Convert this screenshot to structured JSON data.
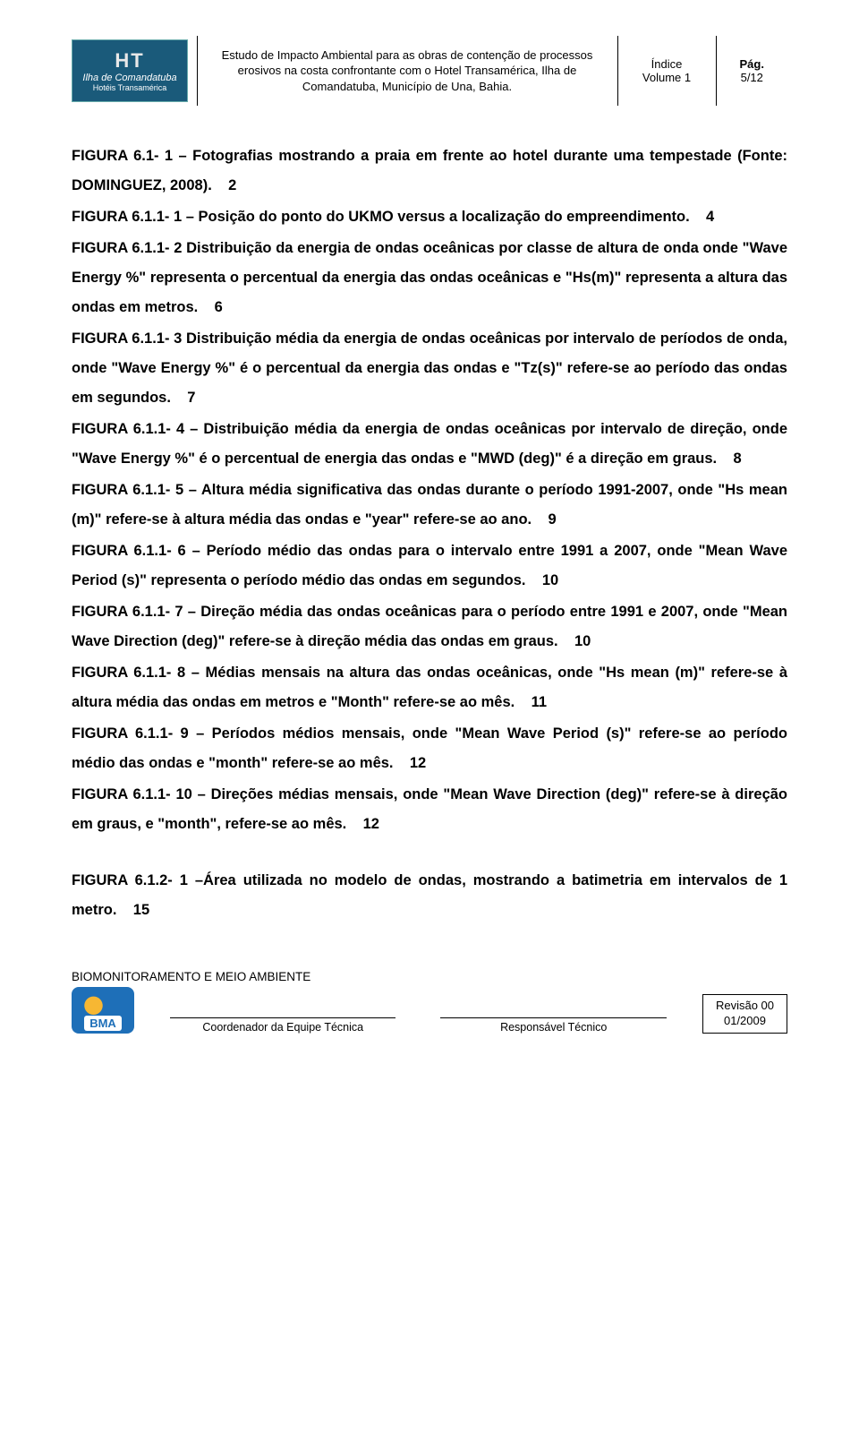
{
  "header": {
    "logo": {
      "line1": "HT",
      "line2": "Ilha de Comandatuba",
      "line3": "Hotéis Transamérica"
    },
    "description": "Estudo de Impacto Ambiental para as obras de contenção de processos erosivos na costa confrontante com o Hotel Transamérica, Ilha de Comandatuba, Município de Una, Bahia.",
    "index_label": "Índice",
    "volume": "Volume 1",
    "page_label": "Pág.",
    "page_num": "5/12"
  },
  "entries": [
    {
      "label": "FIGURA 6.1-",
      "num": "1",
      "text": " – Fotografias mostrando a praia em frente ao hotel durante uma tempestade (Fonte: DOMINGUEZ, 2008).",
      "page": "2"
    },
    {
      "label": "FIGURA 6.1.1-",
      "num": "1",
      "text": " – Posição do ponto do UKMO versus a localização do empreendimento.",
      "page": "4"
    },
    {
      "label": "FIGURA 6.1.1-",
      "num": "2",
      "text": " Distribuição da energia de ondas oceânicas por classe de altura de onda onde \"Wave Energy %\" representa o percentual da energia das ondas oceânicas e \"Hs(m)\" representa a altura das ondas em metros.",
      "page": "6"
    },
    {
      "label": "FIGURA 6.1.1-",
      "num": "3",
      "text": " Distribuição média da energia de ondas oceânicas por intervalo de períodos de onda, onde \"Wave Energy %\" é o percentual da energia das ondas e \"Tz(s)\" refere-se ao período das ondas em segundos.",
      "page": "7"
    },
    {
      "label": "FIGURA 6.1.1-",
      "num": "4",
      "text": " – Distribuição média da energia de ondas oceânicas por intervalo de direção, onde \"Wave Energy %\" é o percentual de energia das ondas e \"MWD (deg)\" é a direção em graus.",
      "page": "8"
    },
    {
      "label": "FIGURA 6.1.1-",
      "num": "5",
      "text": " – Altura média significativa das ondas durante o período 1991-2007, onde \"Hs mean (m)\" refere-se à altura média das ondas e \"year\" refere-se ao ano.",
      "page": "9"
    },
    {
      "label": "FIGURA 6.1.1-",
      "num": "6",
      "text": " – Período médio das ondas para o intervalo entre 1991 a 2007, onde \"Mean Wave Period (s)\" representa o período médio das ondas em segundos.",
      "page": "10"
    },
    {
      "label": "FIGURA 6.1.1-",
      "num": "7",
      "text": " – Direção média das ondas oceânicas para o período entre 1991 e 2007, onde \"Mean Wave Direction (deg)\" refere-se à direção média das ondas em graus.",
      "page": "10"
    },
    {
      "label": "FIGURA 6.1.1-",
      "num": "8",
      "text": " – Médias mensais na altura das ondas oceânicas, onde \"Hs mean (m)\" refere-se à altura média das ondas em metros e \"Month\" refere-se ao mês.",
      "page": "11"
    },
    {
      "label": "FIGURA 6.1.1-",
      "num": "9",
      "text": " – Períodos médios mensais, onde \"Mean Wave Period (s)\" refere-se ao período médio das ondas e \"month\" refere-se ao mês.",
      "page": "12"
    },
    {
      "label": "FIGURA 6.1.1-",
      "num": "10",
      "text": " – Direções médias mensais, onde \"Mean Wave Direction (deg)\" refere-se à direção em graus, e \"month\", refere-se ao mês.",
      "page": "12"
    }
  ],
  "entries2": [
    {
      "label": "FIGURA 6.1.2-",
      "num": "1",
      "text": " –Área utilizada no modelo de ondas, mostrando a batimetria em intervalos de 1 metro.",
      "page": "15"
    }
  ],
  "footer": {
    "org": "BIOMONITORAMENTO E MEIO AMBIENTE",
    "logo_text": "BMA",
    "sig1": "Coordenador da Equipe Técnica",
    "sig2": "Responsável Técnico",
    "rev_label": "Revisão 00",
    "rev_date": "01/2009"
  }
}
